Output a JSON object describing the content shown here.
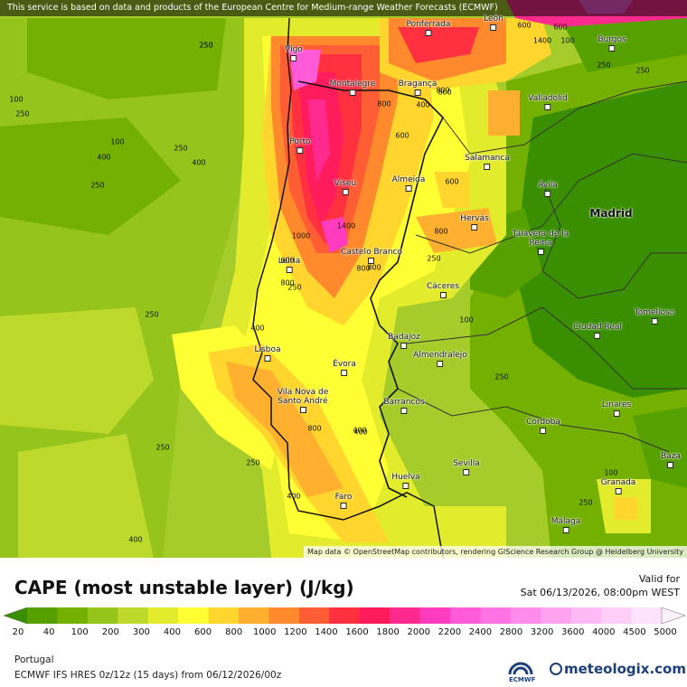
{
  "notice": "This service is based on data and products of the European Centre for Medium-range Weather Forecasts (ECMWF)",
  "attribution": "Map data © OpenStreetMap contributors, rendering GIScience Research Group @ Heidelberg University",
  "legend": {
    "title": "CAPE (most unstable layer) (J/kg)",
    "valid_for_label": "Valid for",
    "valid_time": "Sat 06/13/2026, 08:00pm WEST",
    "levels": [
      "20",
      "40",
      "100",
      "200",
      "300",
      "400",
      "600",
      "800",
      "1000",
      "1200",
      "1400",
      "1600",
      "1800",
      "2000",
      "2200",
      "2400",
      "2800",
      "3200",
      "3600",
      "4000",
      "4500",
      "5000"
    ],
    "colors": [
      "#3a8f00",
      "#56a000",
      "#74b000",
      "#95c41c",
      "#bcd92c",
      "#e2ec2c",
      "#ffff33",
      "#ffd52e",
      "#ffb02e",
      "#ff8a2e",
      "#ff5e35",
      "#ff3040",
      "#ff1b5c",
      "#ff2a8e",
      "#ff3cbf",
      "#ff5bd8",
      "#ff73e3",
      "#ff8beb",
      "#ffa3f0",
      "#ffb9f4",
      "#ffcff8",
      "#ffe2fb",
      "#fff0fd"
    ]
  },
  "footer": {
    "region": "Portugal",
    "model": "ECMWF IFS HRES 0z/12z (15 days) from 06/12/2026/00z",
    "ecmwf": "ECMWF",
    "brand": "meteologix.com"
  },
  "cities": [
    {
      "name": "Vigo"
    },
    {
      "name": "Ponferrada"
    },
    {
      "name": "León"
    },
    {
      "name": "Burgos"
    },
    {
      "name": "Montalegre"
    },
    {
      "name": "Bragança"
    },
    {
      "name": "Valladolid"
    },
    {
      "name": "Porto"
    },
    {
      "name": "Salamanca"
    },
    {
      "name": "Viseu"
    },
    {
      "name": "Almeida"
    },
    {
      "name": "Ávila"
    },
    {
      "name": "Hervás"
    },
    {
      "name": "Talavera de la Reina"
    },
    {
      "name": "Castelo Branco"
    },
    {
      "name": "Leiria"
    },
    {
      "name": "Cáceres"
    },
    {
      "name": "Ciudad Real"
    },
    {
      "name": "Tomelloso"
    },
    {
      "name": "Badajoz"
    },
    {
      "name": "Lisboa"
    },
    {
      "name": "Almendralejo"
    },
    {
      "name": "Évora"
    },
    {
      "name": "Vila Nova de Santo André"
    },
    {
      "name": "Barrancos"
    },
    {
      "name": "Linares"
    },
    {
      "name": "Córdoba"
    },
    {
      "name": "Sevilla"
    },
    {
      "name": "Huelva"
    },
    {
      "name": "Baza"
    },
    {
      "name": "Faro"
    },
    {
      "name": "Granada"
    },
    {
      "name": "Málaga"
    }
  ],
  "capital": "Madrid",
  "contour_labels": [
    "250",
    "100",
    "250",
    "100",
    "250",
    "400",
    "400",
    "250",
    "250",
    "1000",
    "1400",
    "800",
    "600",
    "800",
    "600",
    "800",
    "800",
    "250",
    "600",
    "400",
    "250",
    "100",
    "250",
    "400",
    "800",
    "250",
    "250",
    "100",
    "400",
    "400",
    "400",
    "250",
    "600",
    "1400",
    "250",
    "800",
    "800",
    "600",
    "100",
    "800",
    "250",
    "250",
    "400"
  ]
}
